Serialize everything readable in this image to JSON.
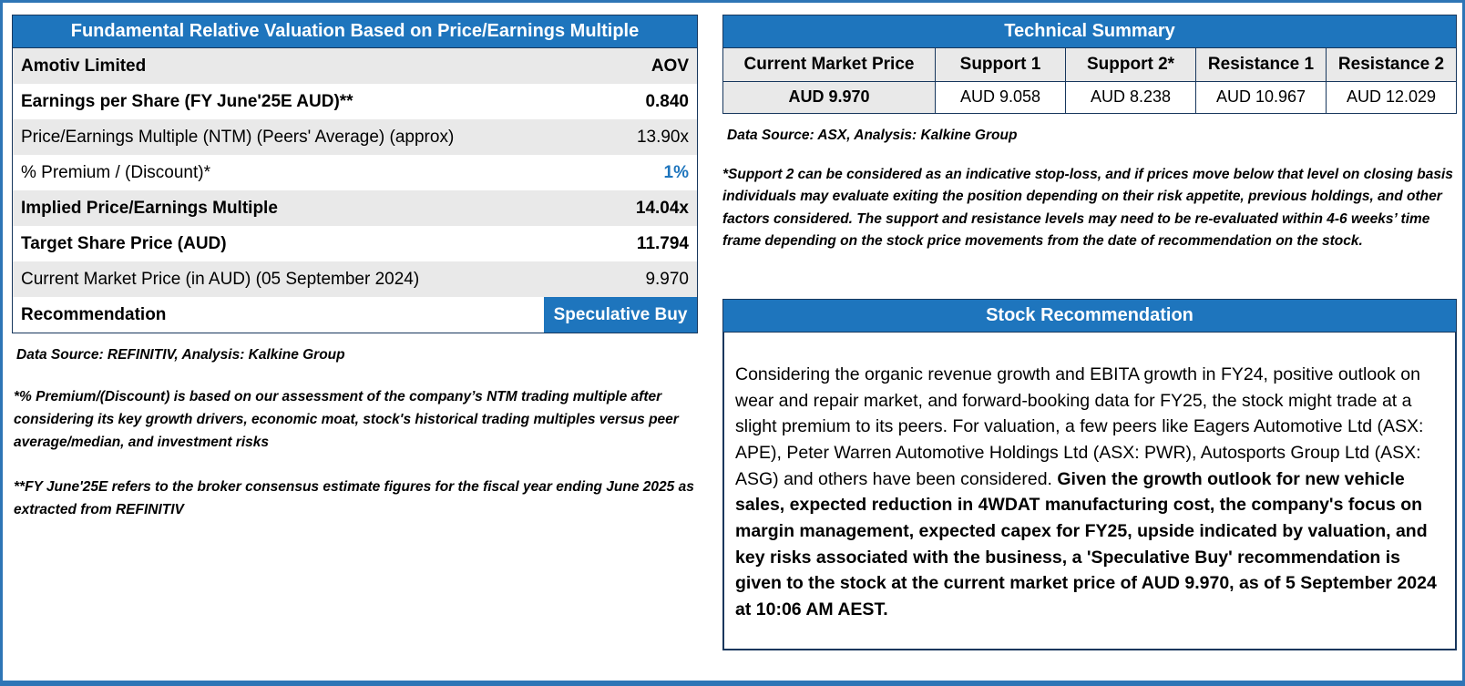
{
  "fundamental": {
    "title": "Fundamental Relative Valuation Based on Price/Earnings Multiple",
    "subheader": {
      "label": "Amotiv Limited",
      "value": "AOV"
    },
    "rows": [
      {
        "label": "Earnings per Share (FY June'25E AUD)**",
        "value": "0.840"
      },
      {
        "label": "Price/Earnings Multiple (NTM)  (Peers' Average) (approx)",
        "value": "13.90x"
      },
      {
        "label": "% Premium / (Discount)*",
        "value": "1%"
      },
      {
        "label": "Implied Price/Earnings Multiple",
        "value": "14.04x"
      },
      {
        "label": "Target Share Price (AUD)",
        "value": "11.794"
      },
      {
        "label": "Current Market Price (in AUD) (05 September 2024)",
        "value": "9.970"
      },
      {
        "label": "Recommendation",
        "value": "Speculative Buy"
      }
    ],
    "source": "Data Source: REFINITIV, Analysis: Kalkine Group",
    "footnote1": "*% Premium/(Discount) is based on our assessment of the company’s NTM trading multiple after considering its key growth drivers, economic moat, stock's historical trading multiples versus peer average/median, and investment risks",
    "footnote2": "**FY June'25E refers to the broker consensus estimate figures for the fiscal year ending June 2025  as extracted from REFINITIV"
  },
  "technical": {
    "title": "Technical Summary",
    "headers": [
      "Current Market Price",
      "Support 1",
      "Support 2*",
      "Resistance 1",
      "Resistance 2"
    ],
    "values": [
      "AUD 9.970",
      "AUD 9.058",
      "AUD 8.238",
      "AUD 10.967",
      "AUD 12.029"
    ],
    "source": "Data Source: ASX, Analysis: Kalkine Group",
    "note": "*Support 2 can be considered as an indicative stop-loss, and if prices move below that level on closing basis individuals may evaluate exiting the position depending on their risk appetite, previous holdings, and other factors considered. The support and resistance levels may need to be re-evaluated within 4-6 weeks’ time frame depending on the stock price movements from the date of recommendation on the stock."
  },
  "recommendation": {
    "title": "Stock Recommendation",
    "body_regular": "Considering the organic revenue growth and EBITA growth in FY24, positive outlook on wear and repair market, and forward-booking data for FY25, the stock might trade at a slight premium to its peers. For valuation, a few peers like Eagers Automotive Ltd (ASX: APE), Peter Warren Automotive Holdings Ltd (ASX: PWR), Autosports Group Ltd (ASX: ASG) and others have been considered. ",
    "body_bold": "Given the growth outlook for new vehicle sales, expected reduction in 4WDAT manufacturing cost, the company's focus on margin management, expected capex for FY25, upside indicated by valuation, and key risks associated with the business, a 'Speculative Buy' recommendation is given to the stock at the current market price of AUD 9.970, as of 5 September 2024 at 10:06 AM AEST."
  },
  "colors": {
    "header_blue": "#1E75BD",
    "accent_blue": "#1E75BD",
    "outer_border_blue": "#2E75B6",
    "table_border_navy": "#17375D",
    "row_shade_gray": "#E9E9E9"
  }
}
